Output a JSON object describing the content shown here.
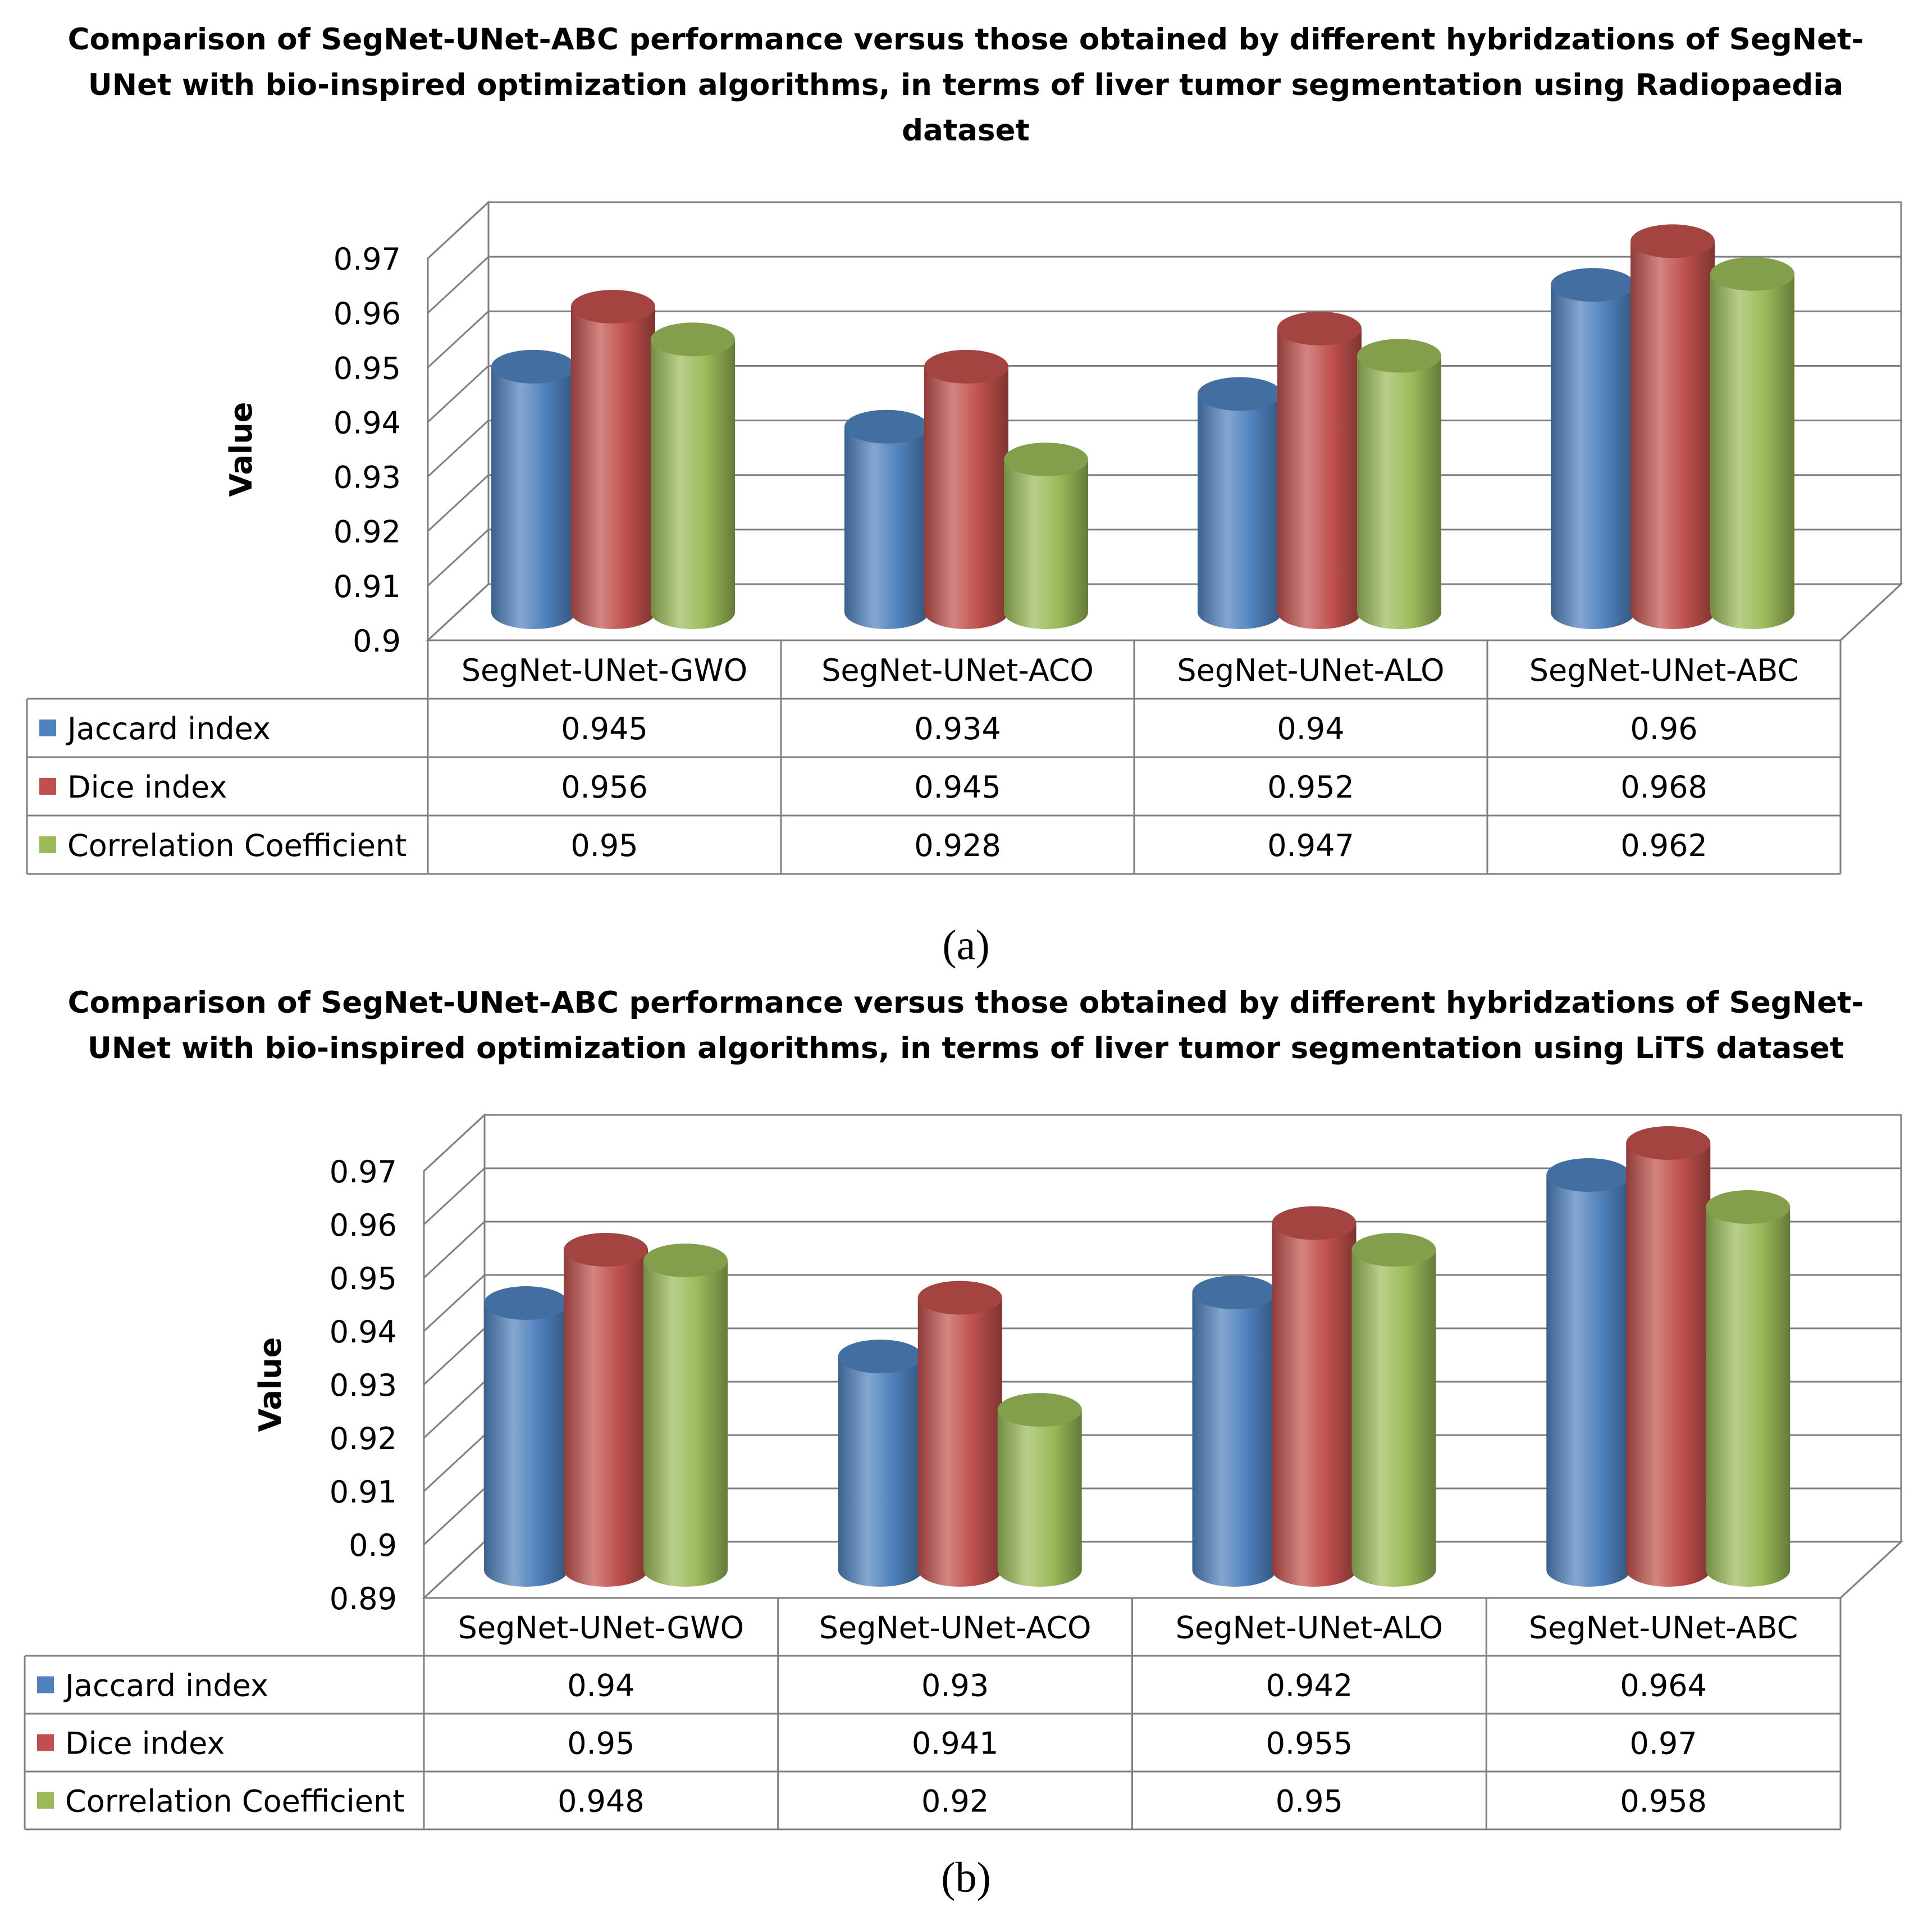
{
  "chart_data": [
    {
      "type": "bar",
      "title": "Comparison of SegNet-UNet-ABC performance versus those obtained by different hybridzations of SegNet-UNet with bio-inspired optimization algorithms, in terms of liver tumor segmentation using Radiopaedia dataset",
      "categories": [
        "SegNet-UNet-GWO",
        "SegNet-UNet-ACO",
        "SegNet-UNet-ALO",
        "SegNet-UNet-ABC"
      ],
      "series": [
        {
          "name": "Jaccard index",
          "color": "#4f81bd",
          "values": [
            0.945,
            0.934,
            0.94,
            0.96
          ],
          "labels": [
            "0.945",
            "0.934",
            "0.94",
            "0.96"
          ]
        },
        {
          "name": "Dice index",
          "color": "#c0504d",
          "values": [
            0.956,
            0.945,
            0.952,
            0.968
          ],
          "labels": [
            "0.956",
            "0.945",
            "0.952",
            "0.968"
          ]
        },
        {
          "name": "Correlation Coefficient",
          "color": "#9bbb59",
          "values": [
            0.95,
            0.928,
            0.947,
            0.962
          ],
          "labels": [
            "0.95",
            "0.928",
            "0.947",
            "0.962"
          ]
        }
      ],
      "ylabel": "Value",
      "xlabel": "",
      "ylim": [
        0.9,
        0.97
      ],
      "yticks": [
        "0.97",
        "0.96",
        "0.95",
        "0.94",
        "0.93",
        "0.92",
        "0.91",
        "0.9"
      ],
      "data_table": true,
      "caption": "(a)"
    },
    {
      "type": "bar",
      "title": "Comparison of SegNet-UNet-ABC performance versus those obtained by different hybridzations of SegNet-UNet with bio-inspired optimization algorithms, in terms of liver tumor segmentation using LiTS dataset",
      "categories": [
        "SegNet-UNet-GWO",
        "SegNet-UNet-ACO",
        "SegNet-UNet-ALO",
        "SegNet-UNet-ABC"
      ],
      "series": [
        {
          "name": "Jaccard index",
          "color": "#4f81bd",
          "values": [
            0.94,
            0.93,
            0.942,
            0.964
          ],
          "labels": [
            "0.94",
            "0.93",
            "0.942",
            "0.964"
          ]
        },
        {
          "name": "Dice index",
          "color": "#c0504d",
          "values": [
            0.95,
            0.941,
            0.955,
            0.97
          ],
          "labels": [
            "0.95",
            "0.941",
            "0.955",
            "0.97"
          ]
        },
        {
          "name": "Correlation Coefficient",
          "color": "#9bbb59",
          "values": [
            0.948,
            0.92,
            0.95,
            0.958
          ],
          "labels": [
            "0.948",
            "0.92",
            "0.95",
            "0.958"
          ]
        }
      ],
      "ylabel": "Value",
      "xlabel": "",
      "ylim": [
        0.89,
        0.97
      ],
      "yticks": [
        "0.97",
        "0.96",
        "0.95",
        "0.94",
        "0.93",
        "0.92",
        "0.91",
        "0.9",
        "0.89"
      ],
      "data_table": true,
      "caption": "(b)"
    }
  ]
}
